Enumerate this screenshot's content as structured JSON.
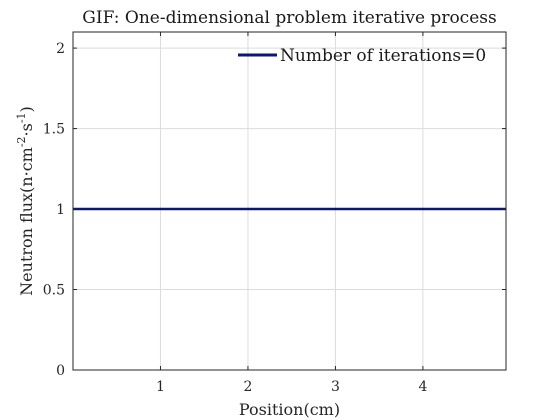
{
  "chart_data": {
    "type": "line",
    "title": "GIF: One-dimensional problem iterative process",
    "xlabel": "Position(cm)",
    "ylabel": {
      "prefix": "Neutron flux(n·cm",
      "exp1": "-2",
      "middle": "·s",
      "exp2": "-1",
      "suffix": ")"
    },
    "xlim": [
      0,
      4.95
    ],
    "ylim": [
      0,
      2.1
    ],
    "x_ticks": [
      1,
      2,
      3,
      4
    ],
    "x_tick_labels": [
      "1",
      "2",
      "3",
      "4"
    ],
    "y_ticks": [
      0,
      0.5,
      1,
      1.5,
      2
    ],
    "y_tick_labels": [
      "0",
      "0.5",
      "1",
      "1.5",
      "2"
    ],
    "grid": true,
    "legend_position": "top-right",
    "series": [
      {
        "name": "Number of iterations=0",
        "color": "#0b1873",
        "x": [
          0,
          4.95
        ],
        "y": [
          1,
          1
        ]
      }
    ]
  }
}
